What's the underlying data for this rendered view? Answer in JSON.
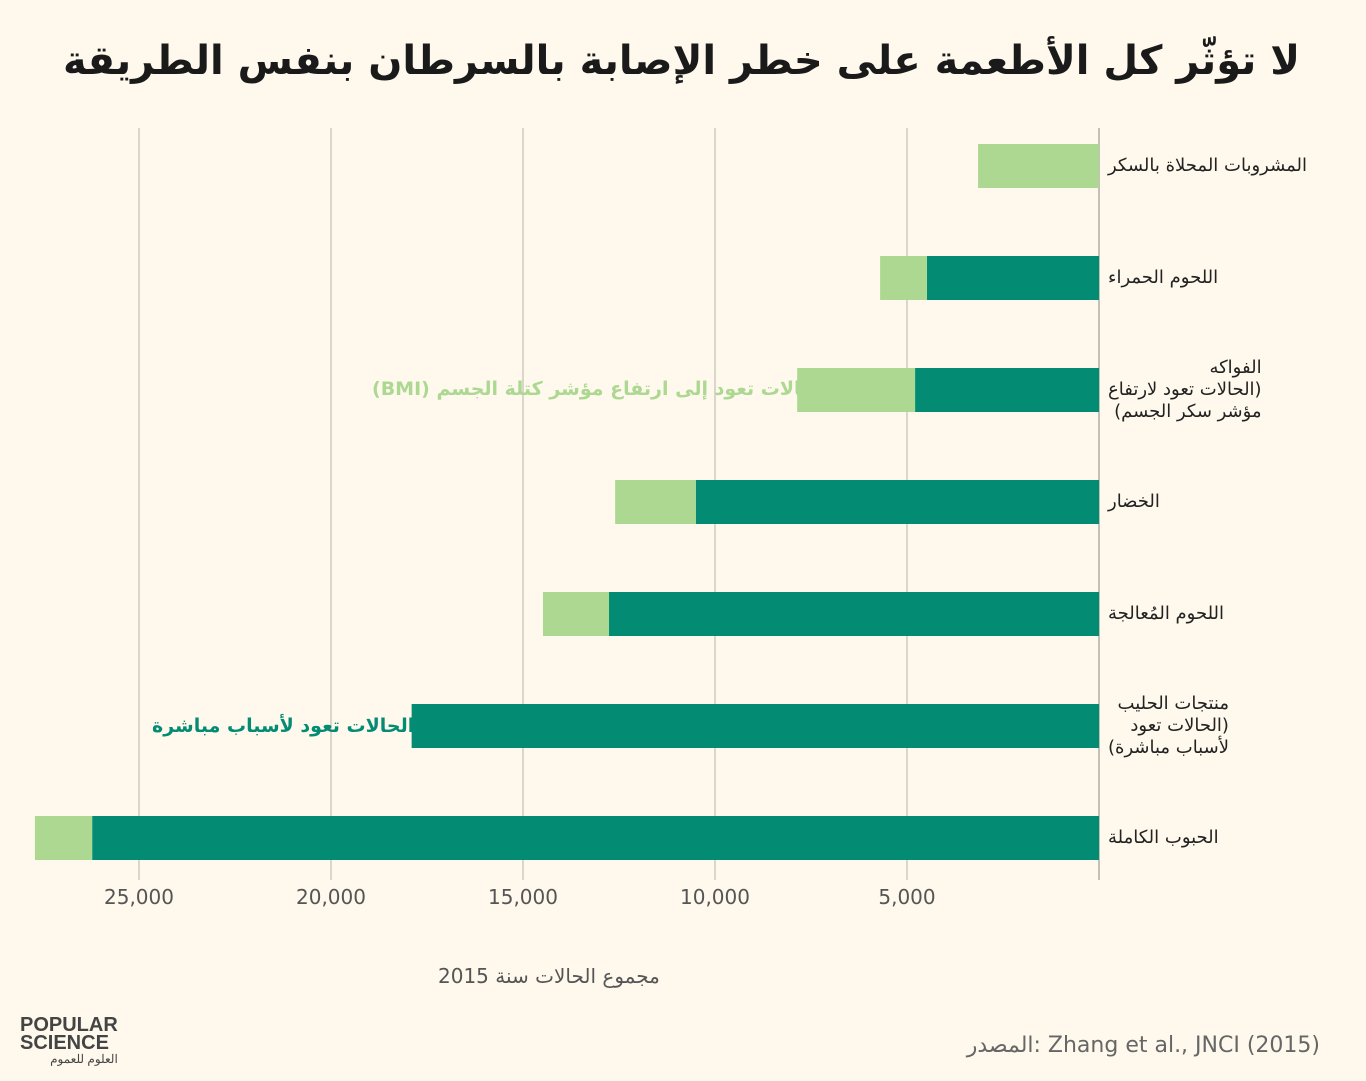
{
  "title": "لا تؤثّر كل الأطعمة على خطر الإصابة بالسرطان بنفس الطريقة",
  "colors": {
    "background": "#fef9ec",
    "direct": "#038c73",
    "bmi": "#acd891",
    "grid": "#b5b2a8"
  },
  "chart_data": {
    "type": "bar",
    "orientation": "horizontal-stacked",
    "title": "لا تؤثّر كل الأطعمة على خطر الإصابة بالسرطان بنفس الطريقة",
    "xlabel": "مجموع الحالات سنة 2015",
    "xlim": [
      0,
      28000
    ],
    "x_direction": "right-to-left",
    "x_ticks": [
      "25,000",
      "20,000",
      "15,000",
      "10,000",
      "5,000"
    ],
    "x_tick_values": [
      25000,
      20000,
      15000,
      10000,
      5000
    ],
    "grid": true,
    "categories": [
      [
        "المشروبات المحلاة بالسكر"
      ],
      [
        "اللحوم الحمراء"
      ],
      [
        "الفواكه",
        "(الحالات تعود لارتفاع",
        "مؤشر سكر الجسم)"
      ],
      [
        "الخضار"
      ],
      [
        "اللحوم المُعالجة"
      ],
      [
        "منتجات الحليب",
        "(الحالات تعود",
        "لأسباب مباشرة)"
      ],
      [
        "الحبوب الكاملة"
      ]
    ],
    "series": [
      {
        "name": "الحالات تعود لأسباب مباشرة",
        "color": "#038c73",
        "values": [
          0,
          4480,
          4790,
          10500,
          12760,
          17900,
          26220
        ]
      },
      {
        "name": "حالات تعود إلى ارتفاع مؤشر كتلة الجسم (BMI)",
        "color": "#acd891",
        "values": [
          3150,
          1220,
          3070,
          2100,
          1720,
          0,
          1490
        ]
      }
    ]
  },
  "annotations": {
    "bmi": "حالات تعود إلى ارتفاع مؤشر كتلة الجسم (BMI)",
    "direct": "الحالات تعود لأسباب مباشرة"
  },
  "source": "المصدر:  Zhang et al., JNCI (2015)",
  "logo": {
    "line1": "POPULAR",
    "line2": "SCIENCE",
    "arabic": "العلوم للعموم"
  }
}
